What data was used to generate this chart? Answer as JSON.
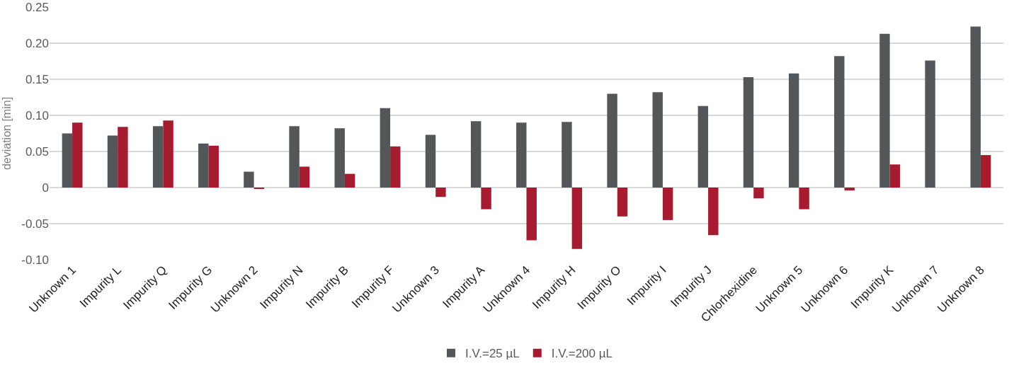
{
  "chart_data": {
    "type": "bar",
    "ylabel": "deviation [min]",
    "categories": [
      "Unknown 1",
      "Impurity L",
      "Impurity Q",
      "Impurity G",
      "Unknown 2",
      "Impurity N",
      "Impurity B",
      "Impurity F",
      "Unknown 3",
      "Impurity A",
      "Unknown 4",
      "Impurity H",
      "Impurity O",
      "Impurity I",
      "Impurity J",
      "Chlorhexidine",
      "Unknown 5",
      "Unknown 6",
      "Impurity K",
      "Unknown 7",
      "Unknown 8"
    ],
    "series": [
      {
        "name": "I.V.=25 µL",
        "color": "#53575a",
        "values": [
          0.075,
          0.072,
          0.085,
          0.061,
          0.022,
          0.085,
          0.082,
          0.11,
          0.073,
          0.092,
          0.09,
          0.091,
          0.13,
          0.132,
          0.113,
          0.153,
          0.158,
          0.182,
          0.213,
          0.176,
          0.223
        ]
      },
      {
        "name": "I.V.=200 µL",
        "color": "#a51c30",
        "values": [
          0.09,
          0.084,
          0.093,
          0.058,
          -0.001,
          0.029,
          0.019,
          0.057,
          -0.013,
          -0.03,
          -0.073,
          -0.085,
          -0.04,
          -0.045,
          -0.066,
          -0.015,
          -0.03,
          -0.004,
          0.032,
          null,
          0.045
        ]
      }
    ],
    "ylim": [
      -0.1,
      0.25
    ],
    "yticks": [
      {
        "value": -0.1,
        "label": "-0.10"
      },
      -0.05,
      0,
      0.05,
      {
        "value": 0.1,
        "label": "0.10"
      },
      0.15,
      {
        "value": 0.2,
        "label": "0.20"
      },
      0.25
    ],
    "grid": "y",
    "legend": "bottom"
  }
}
